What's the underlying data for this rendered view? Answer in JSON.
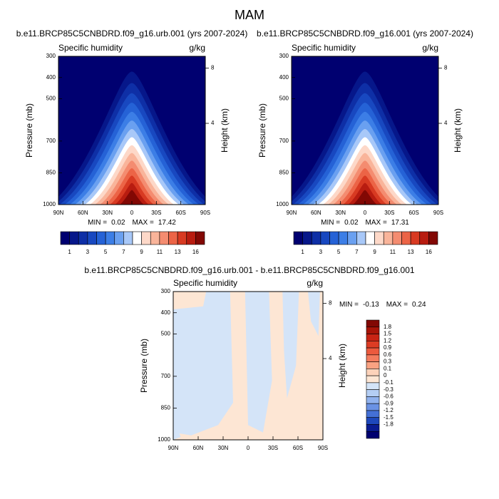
{
  "title": "MAM",
  "chart_data": [
    {
      "type": "contour",
      "title": "b.e11.BRCP85C5CNBDRD.f09_g16.urb.001 (yrs 2007-2024)",
      "left_string": "Specific humidity",
      "right_string": "g/kg",
      "ylabel": "Pressure (mb)",
      "y2label": "Height (km)",
      "xlim": [
        90,
        -90
      ],
      "xticks": [
        {
          "value": 90,
          "label": "90N"
        },
        {
          "value": 60,
          "label": "60N"
        },
        {
          "value": 30,
          "label": "30N"
        },
        0,
        {
          "value": -30,
          "label": "30S"
        },
        {
          "value": -60,
          "label": "60S"
        },
        {
          "value": -90,
          "label": "90S"
        }
      ],
      "ylim": [
        1000,
        300
      ],
      "yticks": [
        300,
        400,
        500,
        700,
        850,
        1000
      ],
      "y2ticks": [
        8,
        4
      ],
      "min_label": "MIN =",
      "min": 0.02,
      "max_label": "MAX =",
      "max": 17.42,
      "colorbar": {
        "orientation": "horizontal",
        "labels": [
          1,
          3,
          5,
          7,
          9,
          11,
          13,
          16
        ],
        "colors": [
          "#000070",
          "#06178a",
          "#0e2fa6",
          "#1848c0",
          "#2562d6",
          "#3c7ee6",
          "#6aa0f0",
          "#a8c8f8",
          "#ffffff",
          "#fdd8c8",
          "#f9b49a",
          "#f48c70",
          "#ec6446",
          "#d83a22",
          "#b81c10",
          "#820804"
        ]
      }
    },
    {
      "type": "contour",
      "title": "b.e11.BRCP85C5CNBDRD.f09_g16.001 (yrs 2007-2024)",
      "left_string": "Specific humidity",
      "right_string": "g/kg",
      "ylabel": "Pressure (mb)",
      "y2label": "Height (km)",
      "xlim": [
        90,
        -90
      ],
      "xticks": [
        {
          "value": 90,
          "label": "90N"
        },
        {
          "value": 60,
          "label": "60N"
        },
        {
          "value": 30,
          "label": "30N"
        },
        0,
        {
          "value": -30,
          "label": "30S"
        },
        {
          "value": -60,
          "label": "60S"
        },
        {
          "value": -90,
          "label": "90S"
        }
      ],
      "ylim": [
        1000,
        300
      ],
      "yticks": [
        300,
        400,
        500,
        700,
        850,
        1000
      ],
      "y2ticks": [
        8,
        4
      ],
      "min_label": "MIN =",
      "min": 0.02,
      "max_label": "MAX =",
      "max": 17.31,
      "colorbar": {
        "orientation": "horizontal",
        "labels": [
          1,
          3,
          5,
          7,
          9,
          11,
          13,
          16
        ],
        "colors": [
          "#000070",
          "#06178a",
          "#0e2fa6",
          "#1848c0",
          "#2562d6",
          "#3c7ee6",
          "#6aa0f0",
          "#a8c8f8",
          "#ffffff",
          "#fdd8c8",
          "#f9b49a",
          "#f48c70",
          "#ec6446",
          "#d83a22",
          "#b81c10",
          "#820804"
        ]
      }
    },
    {
      "type": "difference",
      "title": "b.e11.BRCP85C5CNBDRD.f09_g16.urb.001 - b.e11.BRCP85C5CNBDRD.f09_g16.001",
      "left_string": "Specific humidity",
      "right_string": "g/kg",
      "ylabel": "Pressure (mb)",
      "y2label": "Height (km)",
      "xlim": [
        90,
        -90
      ],
      "xticks": [
        {
          "value": 90,
          "label": "90N"
        },
        {
          "value": 60,
          "label": "60N"
        },
        {
          "value": 30,
          "label": "30N"
        },
        0,
        {
          "value": -30,
          "label": "30S"
        },
        {
          "value": -60,
          "label": "60S"
        },
        {
          "value": -90,
          "label": "90S"
        }
      ],
      "ylim": [
        1000,
        300
      ],
      "yticks": [
        300,
        400,
        500,
        700,
        850,
        1000
      ],
      "y2ticks": [
        8,
        4
      ],
      "min_label": "MIN =",
      "min": -0.13,
      "max_label": "MAX =",
      "max": 0.24,
      "colorbar": {
        "orientation": "vertical",
        "labels": [
          1.8,
          1.5,
          1.2,
          0.9,
          0.6,
          0.3,
          0.1,
          0,
          -0.1,
          -0.3,
          -0.6,
          -0.9,
          -1.2,
          -1.5,
          -1.8
        ],
        "colors": [
          "#820804",
          "#a81408",
          "#c82414",
          "#dc3c24",
          "#ec5a3e",
          "#f47c5e",
          "#f9a282",
          "#fcd2ba",
          "#fde6d4",
          "#d4e4f8",
          "#b4cef4",
          "#90b2ee",
          "#6a92e4",
          "#4470d6",
          "#1e48bc",
          "#0a1c92",
          "#000070"
        ]
      }
    }
  ]
}
